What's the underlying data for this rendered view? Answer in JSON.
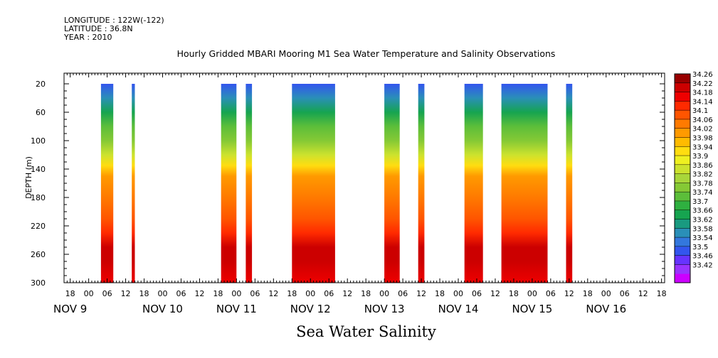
{
  "header": {
    "longitude": "LONGITUDE : 122W(-122)",
    "latitude": "LATITUDE : 36.8N",
    "year": "YEAR : 2010"
  },
  "title": "Hourly Gridded MBARI Mooring M1 Sea Water Temperature and Salinity Observations",
  "variable_name": "Sea Water Salinity",
  "chart_data": {
    "type": "heatmap",
    "title": "Hourly Gridded MBARI Mooring M1 Sea Water Temperature and Salinity Observations",
    "xlabel": "",
    "ylabel": "DEPTH (m)",
    "x_range_hours_from_nov9_00": [
      -8,
      187
    ],
    "ylim": [
      300,
      5
    ],
    "y_ticks": [
      20,
      60,
      100,
      140,
      180,
      220,
      260,
      300
    ],
    "x_tick_hour_labels": [
      "18",
      "00",
      "06",
      "12",
      "18",
      "00",
      "06",
      "12",
      "18",
      "00",
      "06",
      "12",
      "18",
      "00",
      "06",
      "12",
      "18",
      "00",
      "06",
      "12",
      "18",
      "00",
      "06",
      "12",
      "18",
      "00",
      "06",
      "12",
      "18",
      "00",
      "06",
      "12",
      "18"
    ],
    "x_date_labels": [
      "NOV  9",
      "NOV 10",
      "NOV 11",
      "NOV 12",
      "NOV 13",
      "NOV 14",
      "NOV 15",
      "NOV 16"
    ],
    "colorbar": {
      "min": 33.42,
      "max": 34.26,
      "labels": [
        "34.26",
        "34.22",
        "34.18",
        "34.14",
        "34.1",
        "34.06",
        "34.02",
        "33.98",
        "33.94",
        "33.9",
        "33.86",
        "33.82",
        "33.78",
        "33.74",
        "33.7",
        "33.66",
        "33.62",
        "33.58",
        "33.54",
        "33.5",
        "33.46",
        "33.42"
      ],
      "colors": [
        "#cc00ff",
        "#9933ff",
        "#6633ff",
        "#3355ee",
        "#3377dd",
        "#2a8fb8",
        "#199a80",
        "#16a450",
        "#2fb040",
        "#5cbe3a",
        "#85c935",
        "#a8d63a",
        "#cce22e",
        "#eef020",
        "#ffdd10",
        "#ffbb00",
        "#ff9a00",
        "#ff7a00",
        "#ff5500",
        "#ff2a00",
        "#ee0000",
        "#cc0000",
        "#990000"
      ]
    },
    "data_blocks": [
      {
        "start": "NOV 9 04:00",
        "end": "NOV 9 08:00"
      },
      {
        "start": "NOV 9 14:00",
        "end": "NOV 9 15:00"
      },
      {
        "start": "NOV 10 19:00",
        "end": "NOV 11 00:00"
      },
      {
        "start": "NOV 11 03:00",
        "end": "NOV 11 05:00"
      },
      {
        "start": "NOV 11 18:00",
        "end": "NOV 12 08:00"
      },
      {
        "start": "NOV 13 00:00",
        "end": "NOV 13 05:00"
      },
      {
        "start": "NOV 13 11:00",
        "end": "NOV 13 13:00"
      },
      {
        "start": "NOV 14 02:00",
        "end": "NOV 14 08:00"
      },
      {
        "start": "NOV 14 14:00",
        "end": "NOV 15 05:00"
      },
      {
        "start": "NOV 15 11:00",
        "end": "NOV 15 13:00"
      }
    ],
    "depth_profile": [
      {
        "depth": 20,
        "salinity": 33.55
      },
      {
        "depth": 40,
        "salinity": 33.62
      },
      {
        "depth": 60,
        "salinity": 33.7
      },
      {
        "depth": 80,
        "salinity": 33.76
      },
      {
        "depth": 100,
        "salinity": 33.8
      },
      {
        "depth": 120,
        "salinity": 33.86
      },
      {
        "depth": 135,
        "salinity": 33.95
      },
      {
        "depth": 150,
        "salinity": 34.04
      },
      {
        "depth": 180,
        "salinity": 34.06
      },
      {
        "depth": 210,
        "salinity": 34.08
      },
      {
        "depth": 230,
        "salinity": 34.13
      },
      {
        "depth": 250,
        "salinity": 34.2
      },
      {
        "depth": 270,
        "salinity": 34.22
      },
      {
        "depth": 300,
        "salinity": 34.17
      }
    ],
    "grid": false
  }
}
